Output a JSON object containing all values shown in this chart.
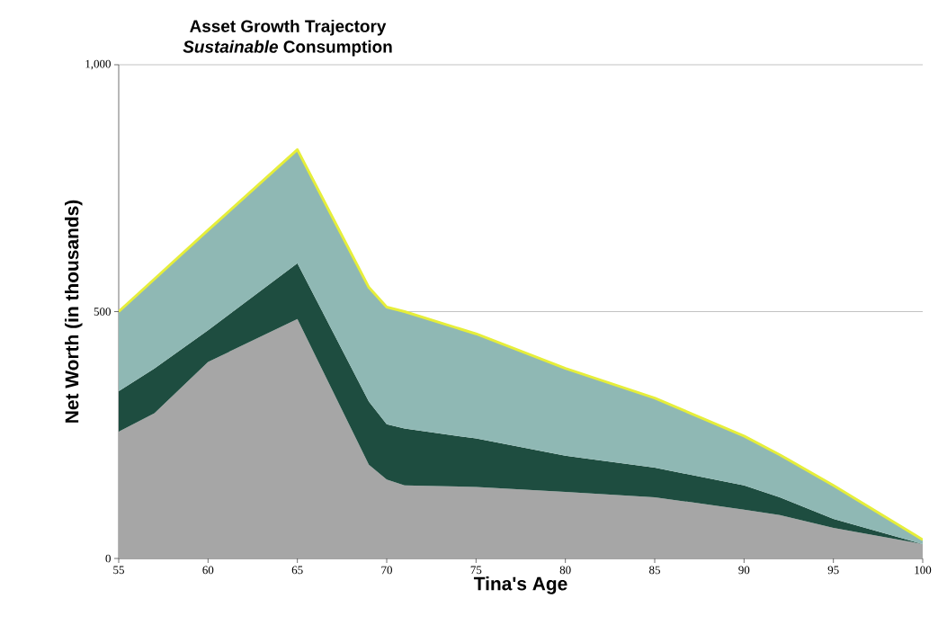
{
  "chart_data": {
    "type": "area",
    "title": "Asset Growth Trajectory",
    "subtitle": "*Sustainable* Consumption",
    "xlabel": "Tina's Age",
    "ylabel": "Net Worth (in thousands)",
    "x": [
      55,
      57,
      60,
      65,
      69,
      70,
      71,
      75,
      80,
      85,
      90,
      92,
      95,
      100
    ],
    "stacked": true,
    "series": [
      {
        "color": "#a6a6a6",
        "values": [
          257,
          294,
          398,
          485,
          190,
          160,
          148,
          145,
          135,
          124,
          99,
          88,
          62,
          29
        ]
      },
      {
        "color": "#1e4d40",
        "values": [
          82,
          91,
          64,
          113,
          128,
          112,
          115,
          98,
          73,
          60,
          49,
          36,
          18,
          0
        ]
      },
      {
        "color": "#8fb8b4",
        "values": [
          161,
          181,
          203,
          230,
          231,
          237,
          237,
          212,
          177,
          141,
          100,
          86,
          68,
          9
        ]
      },
      {
        "type": "line",
        "color": "#e6ee3a",
        "values": [
          500,
          566,
          665,
          828,
          549,
          509,
          500,
          455,
          385,
          325,
          248,
          210,
          148,
          38
        ]
      }
    ],
    "xlim": [
      55,
      100
    ],
    "ylim": [
      0,
      1000
    ],
    "xticks": [
      55,
      60,
      65,
      70,
      75,
      80,
      85,
      90,
      95,
      100
    ],
    "yticks": [
      0,
      500,
      {
        "value": 1000,
        "label": "1,000"
      }
    ],
    "grid": "y"
  }
}
